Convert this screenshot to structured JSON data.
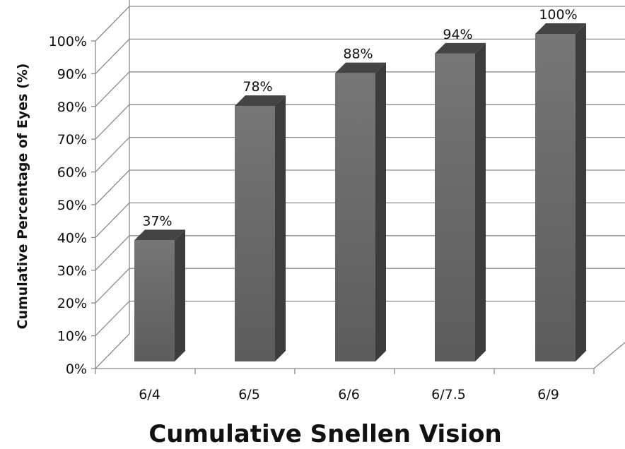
{
  "chart_data": {
    "type": "bar",
    "categories": [
      "6/4",
      "6/5",
      "6/6",
      "6/7.5",
      "6/9"
    ],
    "values": [
      37,
      78,
      88,
      94,
      100
    ],
    "data_labels": [
      "37%",
      "78%",
      "88%",
      "94%",
      "100%"
    ],
    "xlabel": "Cumulative Snellen Vision",
    "ylabel": "Cumulative Percentage of Eyes (%)",
    "yticks": [
      "0%",
      "10%",
      "20%",
      "30%",
      "40%",
      "50%",
      "60%",
      "70%",
      "80%",
      "90%",
      "100%"
    ],
    "ylim": [
      0,
      100
    ],
    "grid": true,
    "three_d": true,
    "colors": {
      "bar_front_top": "#767676",
      "bar_front_bottom": "#5c5c5c",
      "bar_side": "#3c3c3c",
      "bar_top": "#444444",
      "grid": "#8a8a8a"
    }
  }
}
